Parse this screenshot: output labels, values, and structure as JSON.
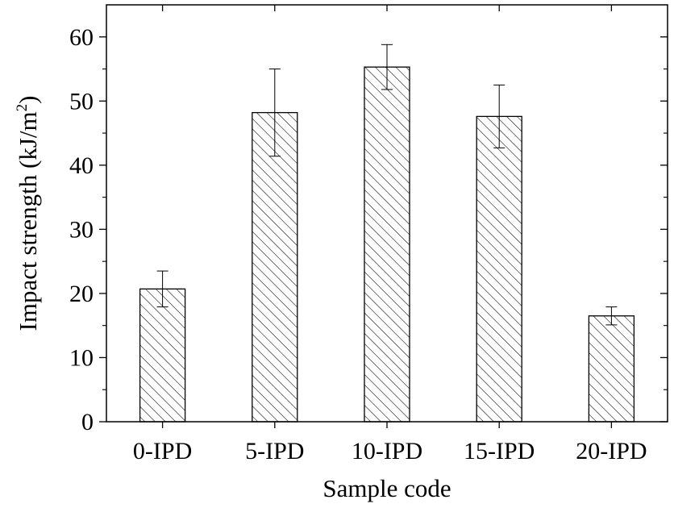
{
  "chart_data": {
    "type": "bar",
    "xlabel": "Sample code",
    "ylabel_main": "Impact strength (kJ/m",
    "ylabel_sup": "2",
    "ylabel_close": ")",
    "categories": [
      "0-IPD",
      "5-IPD",
      "10-IPD",
      "15-IPD",
      "20-IPD"
    ],
    "values": [
      20.7,
      48.2,
      55.3,
      47.6,
      16.5
    ],
    "errors": [
      2.8,
      6.8,
      3.5,
      4.9,
      1.4
    ],
    "ylim": [
      0,
      65
    ],
    "yticks": [
      0,
      10,
      20,
      30,
      40,
      50,
      60
    ],
    "ytick_labels": [
      "0",
      "10",
      "20",
      "30",
      "40",
      "50",
      "60"
    ],
    "bar_fill": "hatched (diagonal lines)",
    "grid": false,
    "colors": {
      "line": "#000000",
      "background": "#ffffff"
    }
  }
}
